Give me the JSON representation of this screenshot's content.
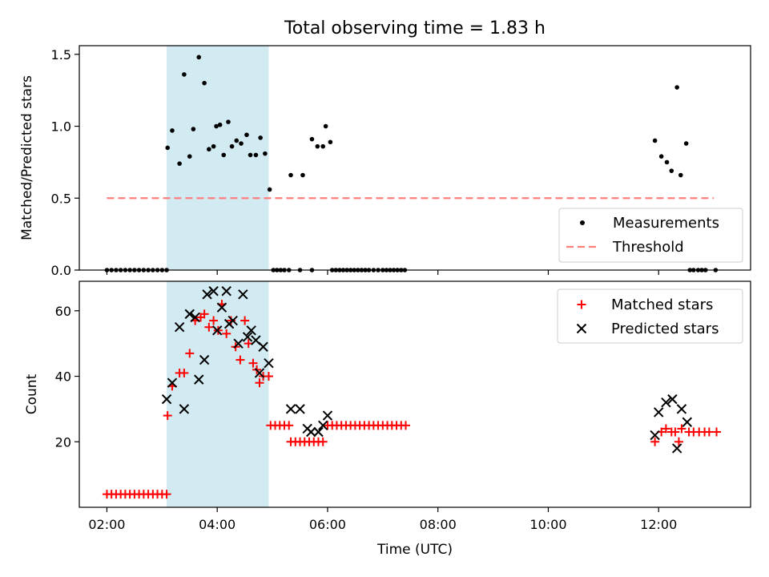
{
  "chart_data": [
    {
      "type": "scatter",
      "title": "Total observing time = 1.83 h",
      "xlabel": "",
      "ylabel": "Matched/Predicted stars",
      "xlim": [
        "01:30",
        "13:40"
      ],
      "ylim": [
        0,
        1.56
      ],
      "yticks": [
        "0.0",
        "0.5",
        "1.0",
        "1.5"
      ],
      "shaded_span": [
        "03:05",
        "04:56"
      ],
      "shaded_color": "#add8e6",
      "legend_position": "bottom-right",
      "series": [
        {
          "name": "Measurements",
          "marker": "dot",
          "color": "#000000",
          "points": [
            [
              "02:00",
              0
            ],
            [
              "02:05",
              0
            ],
            [
              "02:10",
              0
            ],
            [
              "02:15",
              0
            ],
            [
              "02:20",
              0
            ],
            [
              "02:25",
              0
            ],
            [
              "02:30",
              0
            ],
            [
              "02:35",
              0
            ],
            [
              "02:40",
              0
            ],
            [
              "02:45",
              0
            ],
            [
              "02:50",
              0
            ],
            [
              "02:55",
              0
            ],
            [
              "03:00",
              0
            ],
            [
              "03:05",
              0
            ],
            [
              "03:06",
              0.85
            ],
            [
              "03:11",
              0.97
            ],
            [
              "03:19",
              0.74
            ],
            [
              "03:24",
              1.36
            ],
            [
              "03:30",
              0.79
            ],
            [
              "03:34",
              0.98
            ],
            [
              "03:40",
              1.48
            ],
            [
              "03:46",
              1.3
            ],
            [
              "03:51",
              0.84
            ],
            [
              "03:56",
              0.86
            ],
            [
              "03:59",
              1.0
            ],
            [
              "04:03",
              1.01
            ],
            [
              "04:07",
              0.8
            ],
            [
              "04:12",
              1.03
            ],
            [
              "04:16",
              0.86
            ],
            [
              "04:21",
              0.9
            ],
            [
              "04:26",
              0.88
            ],
            [
              "04:32",
              0.94
            ],
            [
              "04:36",
              0.8
            ],
            [
              "04:42",
              0.8
            ],
            [
              "04:47",
              0.92
            ],
            [
              "04:52",
              0.81
            ],
            [
              "04:57",
              0.56
            ],
            [
              "05:01",
              0
            ],
            [
              "05:05",
              0
            ],
            [
              "05:09",
              0
            ],
            [
              "05:13",
              0
            ],
            [
              "05:18",
              0
            ],
            [
              "05:30",
              0
            ],
            [
              "05:43",
              0
            ],
            [
              "05:20",
              0.66
            ],
            [
              "05:33",
              0.66
            ],
            [
              "05:43",
              0.91
            ],
            [
              "05:49",
              0.86
            ],
            [
              "05:55",
              0.86
            ],
            [
              "05:58",
              1.0
            ],
            [
              "06:03",
              0.89
            ],
            [
              "06:05",
              0
            ],
            [
              "06:09",
              0
            ],
            [
              "06:13",
              0
            ],
            [
              "06:17",
              0
            ],
            [
              "06:21",
              0
            ],
            [
              "06:25",
              0
            ],
            [
              "06:29",
              0
            ],
            [
              "06:33",
              0
            ],
            [
              "06:37",
              0
            ],
            [
              "06:41",
              0
            ],
            [
              "06:45",
              0
            ],
            [
              "06:50",
              0
            ],
            [
              "06:55",
              0
            ],
            [
              "07:00",
              0
            ],
            [
              "07:04",
              0
            ],
            [
              "07:08",
              0
            ],
            [
              "07:12",
              0
            ],
            [
              "07:16",
              0
            ],
            [
              "07:20",
              0
            ],
            [
              "07:24",
              0
            ],
            [
              "11:56",
              0.9
            ],
            [
              "12:03",
              0.79
            ],
            [
              "12:09",
              0.75
            ],
            [
              "12:14",
              0.69
            ],
            [
              "12:20",
              1.27
            ],
            [
              "12:24",
              0.66
            ],
            [
              "12:30",
              0.88
            ],
            [
              "12:34",
              0
            ],
            [
              "12:38",
              0
            ],
            [
              "12:43",
              0
            ],
            [
              "12:47",
              0
            ],
            [
              "12:51",
              0
            ],
            [
              "13:02",
              0
            ]
          ]
        },
        {
          "name": "Threshold",
          "marker": "dashed-line",
          "color": "#ff7f7f",
          "points": [
            [
              "02:00",
              0.5
            ],
            [
              "13:00",
              0.5
            ]
          ]
        }
      ]
    },
    {
      "type": "scatter",
      "title": "",
      "xlabel": "Time (UTC)",
      "ylabel": "Count",
      "xlim": [
        "01:30",
        "13:40"
      ],
      "ylim": [
        0,
        69
      ],
      "yticks": [
        "20",
        "40",
        "60"
      ],
      "xticks": [
        "02:00",
        "04:00",
        "06:00",
        "08:00",
        "10:00",
        "12:00"
      ],
      "shaded_span": [
        "03:05",
        "04:56"
      ],
      "shaded_color": "#add8e6",
      "legend_position": "top-right",
      "series": [
        {
          "name": "Matched stars",
          "marker": "plus",
          "color": "#ff0000",
          "points": [
            [
              "02:00",
              4
            ],
            [
              "02:05",
              4
            ],
            [
              "02:10",
              4
            ],
            [
              "02:15",
              4
            ],
            [
              "02:20",
              4
            ],
            [
              "02:25",
              4
            ],
            [
              "02:30",
              4
            ],
            [
              "02:35",
              4
            ],
            [
              "02:40",
              4
            ],
            [
              "02:45",
              4
            ],
            [
              "02:50",
              4
            ],
            [
              "02:55",
              4
            ],
            [
              "03:00",
              4
            ],
            [
              "03:05",
              4
            ],
            [
              "03:06",
              28
            ],
            [
              "03:11",
              37
            ],
            [
              "03:19",
              41
            ],
            [
              "03:24",
              41
            ],
            [
              "03:30",
              47
            ],
            [
              "03:36",
              57
            ],
            [
              "03:42",
              58
            ],
            [
              "03:46",
              59
            ],
            [
              "03:51",
              55
            ],
            [
              "03:56",
              57
            ],
            [
              "04:01",
              54
            ],
            [
              "04:05",
              62
            ],
            [
              "04:10",
              53
            ],
            [
              "04:15",
              57
            ],
            [
              "04:20",
              49
            ],
            [
              "04:25",
              45
            ],
            [
              "04:30",
              57
            ],
            [
              "04:34",
              50
            ],
            [
              "04:39",
              44
            ],
            [
              "04:43",
              42
            ],
            [
              "04:46",
              38
            ],
            [
              "04:50",
              40
            ],
            [
              "04:56",
              40
            ],
            [
              "04:58",
              25
            ],
            [
              "05:03",
              25
            ],
            [
              "05:08",
              25
            ],
            [
              "05:13",
              25
            ],
            [
              "05:18",
              25
            ],
            [
              "05:20",
              20
            ],
            [
              "05:25",
              20
            ],
            [
              "05:30",
              20
            ],
            [
              "05:35",
              20
            ],
            [
              "05:40",
              20
            ],
            [
              "05:45",
              20
            ],
            [
              "05:50",
              20
            ],
            [
              "05:55",
              20
            ],
            [
              "06:00",
              25
            ],
            [
              "06:05",
              25
            ],
            [
              "06:10",
              25
            ],
            [
              "06:15",
              25
            ],
            [
              "06:20",
              25
            ],
            [
              "06:25",
              25
            ],
            [
              "06:30",
              25
            ],
            [
              "06:35",
              25
            ],
            [
              "06:40",
              25
            ],
            [
              "06:45",
              25
            ],
            [
              "06:50",
              25
            ],
            [
              "06:55",
              25
            ],
            [
              "07:00",
              25
            ],
            [
              "07:05",
              25
            ],
            [
              "07:10",
              25
            ],
            [
              "07:15",
              25
            ],
            [
              "07:20",
              25
            ],
            [
              "07:25",
              25
            ],
            [
              "11:56",
              20
            ],
            [
              "12:03",
              23
            ],
            [
              "12:08",
              24
            ],
            [
              "12:14",
              23
            ],
            [
              "12:18",
              23
            ],
            [
              "12:22",
              20
            ],
            [
              "12:25",
              24
            ],
            [
              "12:33",
              23
            ],
            [
              "12:38",
              23
            ],
            [
              "12:44",
              23
            ],
            [
              "12:50",
              23
            ],
            [
              "12:55",
              23
            ],
            [
              "13:03",
              23
            ]
          ]
        },
        {
          "name": "Predicted stars",
          "marker": "x",
          "color": "#000000",
          "points": [
            [
              "03:05",
              33
            ],
            [
              "03:11",
              38
            ],
            [
              "03:19",
              55
            ],
            [
              "03:24",
              30
            ],
            [
              "03:30",
              59
            ],
            [
              "03:36",
              58
            ],
            [
              "03:40",
              39
            ],
            [
              "03:46",
              45
            ],
            [
              "03:49",
              65
            ],
            [
              "03:56",
              66
            ],
            [
              "04:00",
              54
            ],
            [
              "04:05",
              61
            ],
            [
              "04:10",
              66
            ],
            [
              "04:13",
              56
            ],
            [
              "04:17",
              57
            ],
            [
              "04:23",
              50
            ],
            [
              "04:28",
              65
            ],
            [
              "04:33",
              52
            ],
            [
              "04:37",
              54
            ],
            [
              "04:42",
              51
            ],
            [
              "04:46",
              41
            ],
            [
              "04:50",
              49
            ],
            [
              "04:56",
              44
            ],
            [
              "05:20",
              30
            ],
            [
              "05:30",
              30
            ],
            [
              "05:38",
              24
            ],
            [
              "05:42",
              23
            ],
            [
              "05:50",
              23
            ],
            [
              "05:55",
              25
            ],
            [
              "06:00",
              28
            ],
            [
              "11:56",
              22
            ],
            [
              "12:00",
              29
            ],
            [
              "12:08",
              32
            ],
            [
              "12:15",
              33
            ],
            [
              "12:20",
              18
            ],
            [
              "12:25",
              30
            ],
            [
              "12:31",
              26
            ]
          ]
        }
      ]
    }
  ]
}
